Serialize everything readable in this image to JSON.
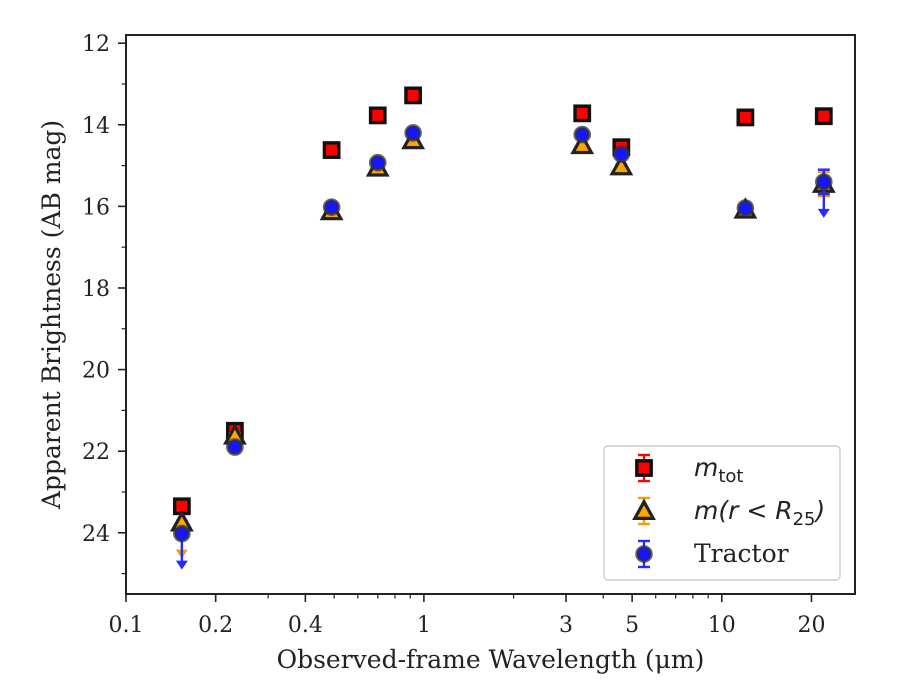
{
  "chart_data": {
    "type": "scatter",
    "title": "",
    "xlabel": "Observed-frame Wavelength (μm)",
    "ylabel": "Apparent Brightness (AB mag)",
    "xscale": "log",
    "xlim": [
      0.1,
      28
    ],
    "ylim": [
      25.5,
      11.8
    ],
    "y_inverted": true,
    "x_ticks": [
      0.1,
      0.2,
      0.4,
      1,
      3,
      5,
      10,
      20
    ],
    "x_tick_labels": [
      "0.1",
      "0.2",
      "0.4",
      "1",
      "3",
      "5",
      "10",
      "20"
    ],
    "y_ticks": [
      12,
      14,
      16,
      18,
      20,
      22,
      24
    ],
    "y_tick_labels": [
      "12",
      "14",
      "16",
      "18",
      "20",
      "22",
      "24"
    ],
    "legend_position": "lower-right",
    "grid": false,
    "series": [
      {
        "name": "m_tot",
        "legend_base": "m",
        "legend_sub": "tot",
        "marker": "square",
        "color": "#ff0000",
        "edge": "#111111",
        "errcolor": "#ff0000",
        "x": [
          0.154,
          0.232,
          0.49,
          0.7,
          0.92,
          3.4,
          4.6,
          12.0,
          22.0
        ],
        "y": [
          23.35,
          21.5,
          14.62,
          13.77,
          13.28,
          13.72,
          14.55,
          13.82,
          13.79
        ],
        "yerr": [
          0.05,
          0.05,
          0.03,
          0.03,
          0.03,
          0.03,
          0.05,
          0.05,
          0.05
        ],
        "upper_limit": [
          false,
          false,
          false,
          false,
          false,
          false,
          false,
          false,
          false
        ]
      },
      {
        "name": "m(r < R25)",
        "legend_base": "m(r < R",
        "legend_sub": "25",
        "legend_tail": ")",
        "marker": "triangle",
        "color": "#ffa500",
        "edge": "#222222",
        "errcolor": "#f0a000",
        "x": [
          0.154,
          0.232,
          0.49,
          0.7,
          0.92,
          3.4,
          4.6,
          12.0,
          22.0
        ],
        "y": [
          23.75,
          21.62,
          16.12,
          15.05,
          14.38,
          14.5,
          15.02,
          16.08,
          15.45
        ],
        "yerr": [
          0.05,
          0.05,
          0.04,
          0.04,
          0.04,
          0.04,
          0.05,
          0.05,
          0.3
        ],
        "upper_limit": [
          true,
          false,
          false,
          false,
          false,
          false,
          false,
          false,
          false
        ]
      },
      {
        "name": "Tractor",
        "legend_base": "Tractor",
        "legend_sub": "",
        "marker": "circle",
        "color": "#1515ff",
        "edge": "#333333",
        "errcolor": "#2a2aff",
        "x": [
          0.154,
          0.232,
          0.49,
          0.7,
          0.92,
          3.4,
          4.6,
          12.0,
          22.0
        ],
        "y": [
          24.02,
          21.9,
          16.02,
          14.93,
          14.2,
          14.24,
          14.72,
          16.04,
          15.4
        ],
        "yerr": [
          0.05,
          0.05,
          0.03,
          0.03,
          0.03,
          0.03,
          0.05,
          0.05,
          0.3
        ],
        "upper_limit": [
          true,
          false,
          false,
          false,
          false,
          false,
          false,
          false,
          true
        ]
      }
    ]
  }
}
